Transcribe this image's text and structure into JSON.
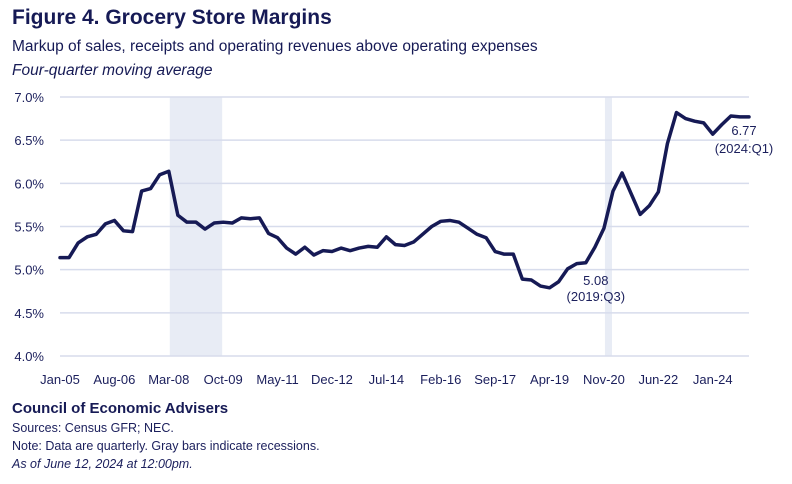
{
  "title": "Figure 4. Grocery Store Margins",
  "subtitle": "Markup of sales, receipts and operating revenues above operating expenses",
  "note": "Four-quarter moving average",
  "footer": {
    "organization": "Council of Economic Advisers",
    "sources": "Sources: Census GFR; NEC.",
    "note": "Note: Data are quarterly. Gray bars indicate recessions.",
    "as_of": "As of June 12, 2024 at 12:00pm."
  },
  "colors": {
    "line": "#161a55",
    "recession": "#e8ecf5",
    "grid": "#d7dcec",
    "text": "#1b1f5c"
  },
  "chart_data": {
    "type": "line",
    "title": "Figure 4. Grocery Store Margins",
    "ylabel": "",
    "xlabel": "",
    "ylim": [
      4.0,
      7.0
    ],
    "y_ticks": [
      4.0,
      4.5,
      5.0,
      5.5,
      6.0,
      6.5,
      7.0
    ],
    "y_tick_labels": [
      "4.0%",
      "4.5%",
      "5.0%",
      "5.5%",
      "6.0%",
      "6.5%",
      "7.0%"
    ],
    "x_tick_labels": [
      "Jan-05",
      "Aug-06",
      "Mar-08",
      "Oct-09",
      "May-11",
      "Dec-12",
      "Jul-14",
      "Feb-16",
      "Sep-17",
      "Apr-19",
      "Nov-20",
      "Jun-22",
      "Jan-24"
    ],
    "start_quarter": "2005:Q1",
    "recessions": [
      {
        "start_index": 12,
        "end_index": 18
      },
      {
        "start_index": 60,
        "end_index": 61
      }
    ],
    "series": [
      {
        "name": "Grocery store margin (%)",
        "values": [
          5.14,
          5.14,
          5.31,
          5.38,
          5.41,
          5.53,
          5.57,
          5.45,
          5.44,
          5.91,
          5.94,
          6.1,
          6.14,
          5.63,
          5.55,
          5.55,
          5.47,
          5.54,
          5.55,
          5.54,
          5.6,
          5.59,
          5.6,
          5.42,
          5.37,
          5.25,
          5.18,
          5.26,
          5.17,
          5.22,
          5.21,
          5.25,
          5.22,
          5.25,
          5.27,
          5.26,
          5.38,
          5.29,
          5.28,
          5.32,
          5.41,
          5.5,
          5.56,
          5.57,
          5.55,
          5.48,
          5.41,
          5.37,
          5.21,
          5.18,
          5.18,
          4.89,
          4.88,
          4.81,
          4.79,
          4.86,
          5.01,
          5.07,
          5.08,
          5.26,
          5.48,
          5.91,
          6.12,
          5.88,
          5.64,
          5.74,
          5.9,
          6.46,
          6.82,
          6.75,
          6.72,
          6.7,
          6.57,
          6.68,
          6.78,
          6.77,
          6.77
        ]
      }
    ],
    "annotations": [
      {
        "label": "5.08",
        "sublabel": "(2019:Q3)",
        "index": 58
      },
      {
        "label": "6.77",
        "sublabel": "(2024:Q1)",
        "index": 76
      }
    ]
  }
}
